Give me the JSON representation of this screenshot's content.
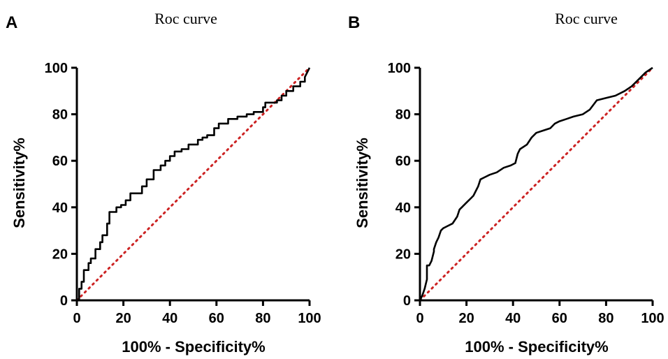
{
  "chart_data": [
    {
      "panel": "A",
      "type": "line",
      "title": "Roc curve",
      "xlabel": "100% - Specificity%",
      "ylabel": "Sensitivity%",
      "xlim": [
        0,
        100
      ],
      "ylim": [
        0,
        100
      ],
      "xticks": [
        "0",
        "20",
        "40",
        "60",
        "80",
        "100"
      ],
      "yticks": [
        "0",
        "20",
        "40",
        "60",
        "80",
        "100"
      ],
      "series": [
        {
          "style": "step",
          "color": "#000000",
          "x": [
            0,
            1,
            1,
            2,
            2,
            3,
            3,
            5,
            5,
            6,
            6,
            8,
            8,
            10,
            10,
            11,
            11,
            13,
            13,
            14,
            14,
            17,
            17,
            19,
            19,
            21,
            21,
            23,
            23,
            28,
            28,
            30,
            30,
            33,
            33,
            36,
            36,
            38,
            38,
            40,
            40,
            42,
            42,
            45,
            45,
            48,
            48,
            52,
            52,
            54,
            54,
            56,
            56,
            59,
            59,
            61,
            61,
            65,
            65,
            69,
            69,
            73,
            73,
            76,
            76,
            80,
            80,
            81,
            81,
            86,
            86,
            88,
            88,
            90,
            90,
            93,
            93,
            96,
            96,
            98,
            98,
            100
          ],
          "y": [
            0,
            0,
            5,
            5,
            8,
            8,
            13,
            13,
            16,
            16,
            18,
            18,
            22,
            22,
            25,
            25,
            28,
            28,
            33,
            33,
            38,
            38,
            40,
            40,
            41,
            41,
            43,
            43,
            46,
            46,
            49,
            49,
            52,
            52,
            56,
            56,
            58,
            58,
            60,
            60,
            62,
            62,
            64,
            64,
            65,
            65,
            67,
            67,
            69,
            69,
            70,
            70,
            71,
            71,
            74,
            74,
            76,
            76,
            78,
            78,
            79,
            79,
            80,
            80,
            81,
            81,
            83,
            83,
            85,
            85,
            86,
            86,
            88,
            88,
            90,
            90,
            92,
            92,
            94,
            94,
            96,
            100
          ]
        },
        {
          "style": "dotted",
          "color": "#cc2222",
          "x": [
            0,
            100
          ],
          "y": [
            0,
            100
          ]
        }
      ]
    },
    {
      "panel": "B",
      "type": "line",
      "title": "Roc curve",
      "xlabel": "100% - Specificity%",
      "ylabel": "Sensitivity%",
      "xlim": [
        0,
        100
      ],
      "ylim": [
        0,
        100
      ],
      "xticks": [
        "0",
        "20",
        "40",
        "60",
        "80",
        "100"
      ],
      "yticks": [
        "0",
        "20",
        "40",
        "60",
        "80",
        "100"
      ],
      "series": [
        {
          "style": "line",
          "color": "#000000",
          "x": [
            0,
            1,
            2,
            3,
            3,
            4,
            5,
            6,
            6,
            7,
            8,
            9,
            10,
            10,
            12,
            14,
            16,
            17,
            18,
            20,
            22,
            23,
            24,
            25,
            26,
            28,
            30,
            33,
            36,
            39,
            41,
            42,
            43,
            46,
            48,
            50,
            53,
            56,
            58,
            60,
            63,
            66,
            70,
            73,
            76,
            80,
            84,
            88,
            91,
            94,
            97,
            100
          ],
          "y": [
            0,
            2,
            5,
            9,
            15,
            15,
            17,
            21,
            22,
            25,
            27,
            30,
            31,
            31,
            32,
            33,
            36,
            39,
            40,
            42,
            44,
            45,
            47,
            49,
            52,
            53,
            54,
            55,
            57,
            58,
            59,
            63,
            65,
            67,
            70,
            72,
            73,
            74,
            76,
            77,
            78,
            79,
            80,
            82,
            86,
            87,
            88,
            90,
            92,
            95,
            98,
            100
          ]
        },
        {
          "style": "dotted",
          "color": "#cc2222",
          "x": [
            0,
            100
          ],
          "y": [
            0,
            100
          ]
        }
      ]
    }
  ]
}
